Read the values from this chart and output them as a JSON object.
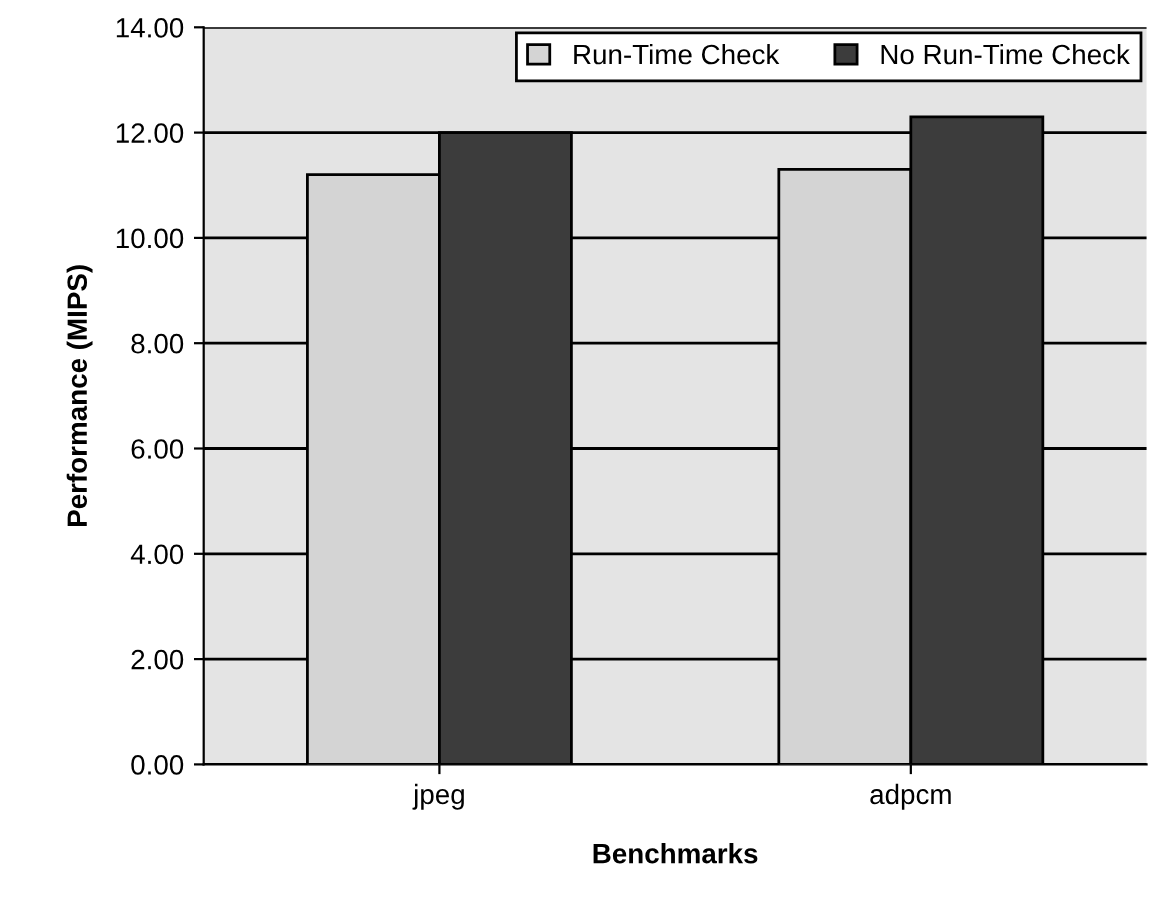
{
  "chart_data": {
    "type": "bar",
    "xlabel": "Benchmarks",
    "ylabel": "Performance (MIPS)",
    "categories": [
      "jpeg",
      "adpcm"
    ],
    "series": [
      {
        "name": "Run-Time Check",
        "color": "#d4d4d4",
        "values": [
          11.2,
          11.3
        ]
      },
      {
        "name": "No Run-Time Check",
        "color": "#3c3c3c",
        "values": [
          12.0,
          12.3
        ]
      }
    ],
    "ylim": [
      0,
      14
    ],
    "yticks": [
      {
        "value": 0,
        "label": "0.00"
      },
      {
        "value": 2,
        "label": "2.00"
      },
      {
        "value": 4,
        "label": "4.00"
      },
      {
        "value": 6,
        "label": "6.00"
      },
      {
        "value": 8,
        "label": "8.00"
      },
      {
        "value": 10,
        "label": "10.00"
      },
      {
        "value": 12,
        "label": "12.00"
      },
      {
        "value": 14,
        "label": "14.00"
      }
    ],
    "grid": "y",
    "legend": "top right"
  }
}
